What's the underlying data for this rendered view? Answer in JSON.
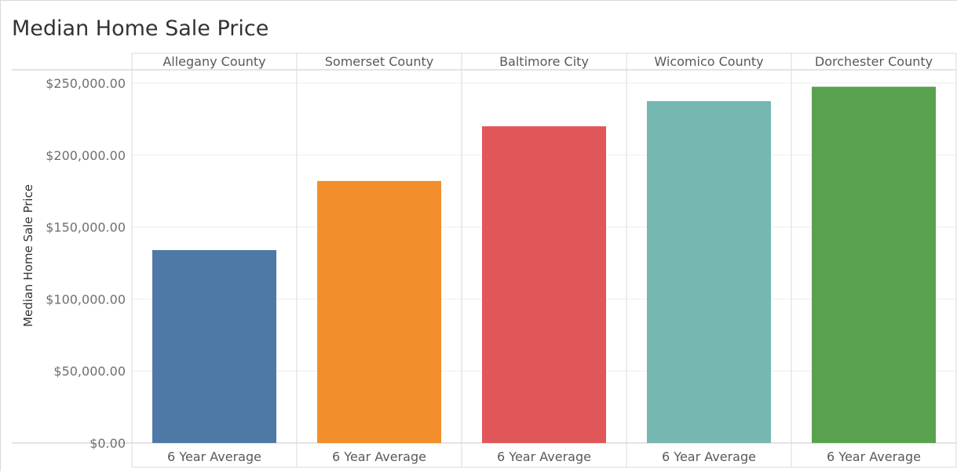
{
  "chart_data": {
    "type": "bar",
    "title": "Median Home Sale Price",
    "ylabel": "Median Home Sale Price",
    "xlabel": "",
    "ylim": [
      0,
      260000
    ],
    "yticks": [
      0,
      50000,
      100000,
      150000,
      200000,
      250000
    ],
    "ytick_labels": [
      "$0.00",
      "$50,000.00",
      "$100,000.00",
      "$150,000.00",
      "$200,000.00",
      "$250,000.00"
    ],
    "grid": true,
    "columns": [
      "Allegany County",
      "Somerset County",
      "Baltimore City",
      "Wicomico County",
      "Dorchester County"
    ],
    "category_label": "6 Year Average",
    "values": [
      134000,
      182000,
      220000,
      237500,
      247500
    ],
    "colors": [
      "#4e79a7",
      "#f28e2b",
      "#e15759",
      "#76b7b2",
      "#59a14f"
    ]
  }
}
